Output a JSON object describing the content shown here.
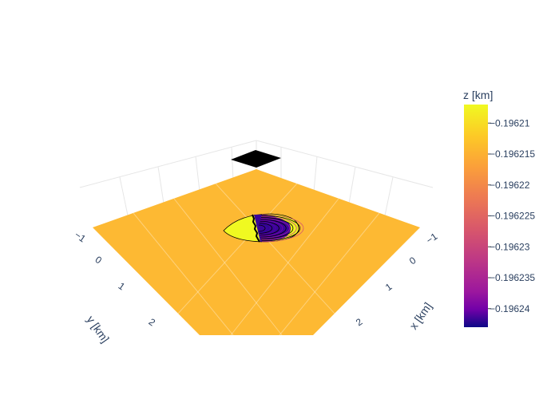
{
  "chart_data": {
    "type": "surface-3d",
    "xaxis": {
      "title": "x [km]",
      "ticks": [
        "−1",
        "0",
        "1",
        "2"
      ]
    },
    "yaxis": {
      "title": "y [km]",
      "ticks": [
        "−1",
        "0",
        "1",
        "2"
      ]
    },
    "colorbar": {
      "title": "z [km]",
      "colorscale": "plasma",
      "range": [
        -0.196243,
        -0.196207
      ],
      "ticks": [
        "−0.19621",
        "−0.196215",
        "−0.19622",
        "−0.196225",
        "−0.19623",
        "−0.196235",
        "−0.19624"
      ],
      "tick_values": [
        -0.19621,
        -0.196215,
        -0.19622,
        -0.196225,
        -0.19623,
        -0.196235,
        -0.19624
      ]
    },
    "surface": {
      "base_value": -0.196215,
      "feature": "localized depression near origin with contour lines",
      "contour_count": 12
    },
    "colors": {
      "plane": "#fdb933",
      "axis_text": "#2a3f5f",
      "grid": "#e6e6e6"
    }
  }
}
